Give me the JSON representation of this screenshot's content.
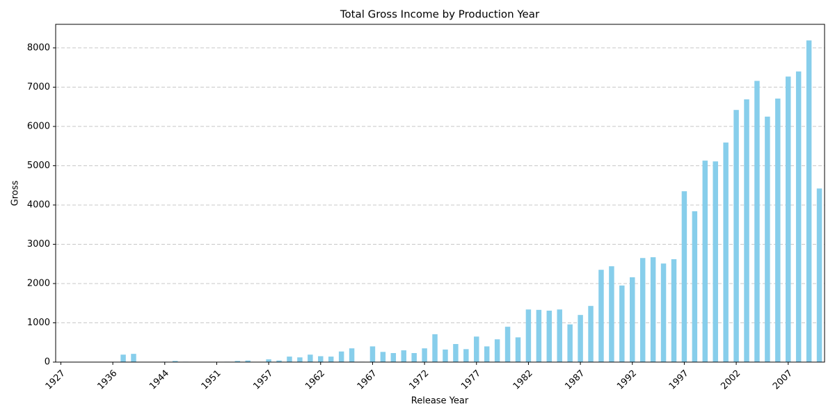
{
  "chart_data": {
    "type": "bar",
    "title": "Total Gross Income by Production Year",
    "x_label": "Release Year",
    "y_label": "Gross",
    "categories": [
      "1927",
      null,
      null,
      null,
      null,
      "1936",
      null,
      null,
      null,
      null,
      "1944",
      null,
      null,
      null,
      null,
      "1951",
      null,
      null,
      null,
      null,
      "1957",
      null,
      null,
      null,
      null,
      "1962",
      null,
      null,
      null,
      null,
      "1967",
      null,
      null,
      null,
      null,
      "1972",
      null,
      null,
      null,
      null,
      "1977",
      null,
      null,
      null,
      null,
      "1982",
      null,
      null,
      null,
      null,
      "1987",
      null,
      null,
      null,
      null,
      "1992",
      null,
      null,
      null,
      null,
      "1997",
      null,
      null,
      null,
      null,
      "2002",
      null,
      null,
      null,
      null,
      "2007",
      null,
      null,
      null
    ],
    "values": [
      0,
      0,
      0,
      5,
      5,
      0,
      190,
      210,
      5,
      0,
      10,
      30,
      10,
      0,
      0,
      5,
      10,
      30,
      40,
      0,
      70,
      40,
      140,
      120,
      190,
      150,
      140,
      270,
      350,
      10,
      400,
      260,
      230,
      300,
      230,
      350,
      710,
      320,
      460,
      330,
      650,
      400,
      580,
      900,
      630,
      1340,
      1330,
      1310,
      1340,
      960,
      1200,
      1430,
      2350,
      2440,
      1950,
      2160,
      2650,
      2670,
      2510,
      2620,
      4350,
      3840,
      5130,
      5110,
      5590,
      6420,
      6690,
      7160,
      6250,
      6710,
      7270,
      7400,
      8190,
      4420
    ],
    "color": "#87ceeb",
    "ylim": [
      0,
      8600
    ],
    "yticks": [
      0,
      1000,
      2000,
      3000,
      4000,
      5000,
      6000,
      7000,
      8000
    ],
    "grid": true
  }
}
